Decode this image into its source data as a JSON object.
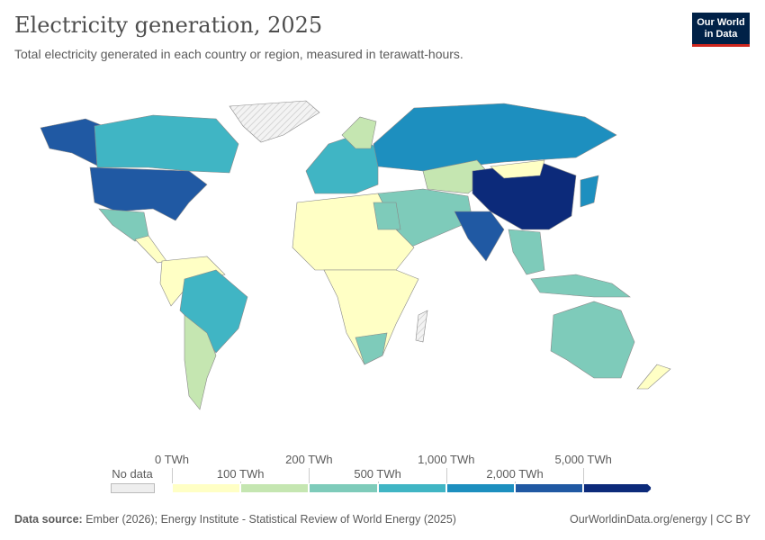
{
  "header": {
    "title": "Electricity generation, 2025",
    "subtitle": "Total electricity generated in each country or region, measured in terawatt-hours.",
    "logo": "Our World in Data",
    "logo_line1": "Our World",
    "logo_line2": "in Data"
  },
  "legend": {
    "no_data": "No data",
    "bins": [
      "0 TWh",
      "100 TWh",
      "200 TWh",
      "500 TWh",
      "1,000 TWh",
      "2,000 TWh",
      "5,000 TWh"
    ],
    "colors": [
      "#ffffc5",
      "#c5e6b1",
      "#7ecbba",
      "#40b5c4",
      "#1d8fbf",
      "#2059a3",
      "#0c2a7a"
    ],
    "no_data_color": "#e9e9e9"
  },
  "footer": {
    "source_label": "Data source:",
    "source": "Ember (2026); Energy Institute - Statistical Review of World Energy (2025)",
    "url": "OurWorldinData.org/energy | CC BY"
  }
}
